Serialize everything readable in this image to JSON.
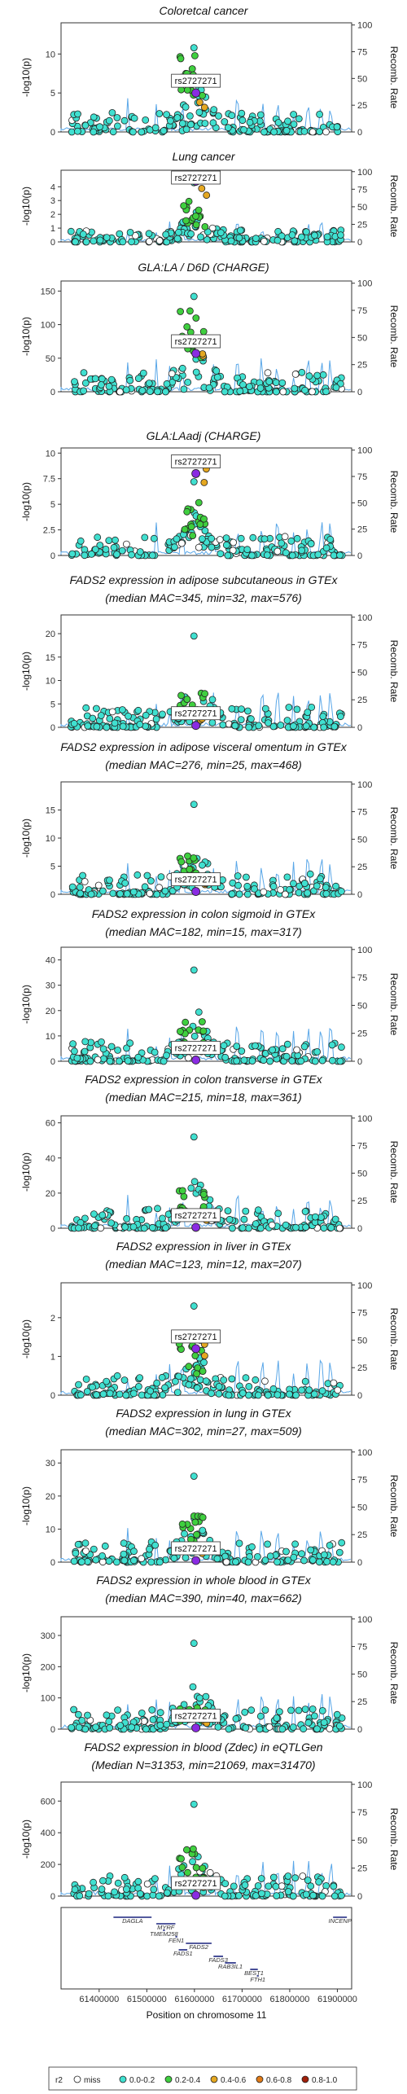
{
  "chart_data": {
    "type": "scatter",
    "snp_label": "rs2727271",
    "y_left_label": "-log10(p)",
    "y_right_label": "Recomb. Rate",
    "right_ticks": [
      0,
      25,
      50,
      75,
      100
    ],
    "x_label": "Position on chromosome 11",
    "x_ticks": [
      61400000,
      61500000,
      61600000,
      61700000,
      61800000,
      61900000
    ],
    "x_tick_labels": [
      "61400000",
      "61500000",
      "61600000",
      "61700000",
      "61800000",
      "61900000"
    ],
    "x_range": [
      61320000,
      61930000
    ],
    "lead_x": 61603000,
    "colors": {
      "miss": "#ffffff",
      "0.0-0.2": "#40e0d0",
      "0.2-0.4": "#3fcf3f",
      "0.4-0.6": "#e5a821",
      "0.6-0.8": "#e07b18",
      "0.8-1.0": "#a0200a",
      "lead": "#8a2be2",
      "recomb": "#5aa7e8"
    },
    "legend": {
      "title": "r2",
      "items": [
        {
          "key": "miss",
          "label": "miss"
        },
        {
          "key": "0.0-0.2",
          "label": "0.0-0.2"
        },
        {
          "key": "0.2-0.4",
          "label": "0.2-0.4"
        },
        {
          "key": "0.4-0.6",
          "label": "0.4-0.6"
        },
        {
          "key": "0.6-0.8",
          "label": "0.6-0.8"
        },
        {
          "key": "0.8-1.0",
          "label": "0.8-1.0"
        }
      ]
    },
    "panels": [
      {
        "title": [
          "Coloretcal cancer"
        ],
        "ylim": [
          0,
          14
        ],
        "yticks": [
          0,
          5,
          10
        ],
        "lead_y": 5.0,
        "max_y": 10.8,
        "green_max": 10.2
      },
      {
        "title": [
          "Lung cancer"
        ],
        "ylim": [
          0,
          5.2
        ],
        "yticks": [
          0,
          1,
          2,
          3,
          4
        ],
        "lead_y": 4.4,
        "max_y": 4.3,
        "green_max": 3.1
      },
      {
        "title": [
          "GLA:LA / D6D (CHARGE)"
        ],
        "ylim": [
          0,
          165
        ],
        "yticks": [
          0,
          50,
          100,
          150
        ],
        "lead_y": 57,
        "max_y": 142,
        "green_max": 128
      },
      {
        "title": [
          "GLA:LAadj (CHARGE)"
        ],
        "ylim": [
          0,
          10.5
        ],
        "yticks": [
          0.0,
          2.5,
          5.0,
          7.5,
          10.0
        ],
        "lead_y": 8.0,
        "max_y": 7.2,
        "green_max": 5.4
      },
      {
        "title": [
          "FADS2 expression in adipose subcutaneous in GTEx",
          "(median MAC=345, min=32, max=576)"
        ],
        "ylim": [
          0,
          24
        ],
        "yticks": [
          0,
          5,
          10,
          15,
          20
        ],
        "lead_y": 0.4,
        "max_y": 19.5,
        "green_max": 7.5
      },
      {
        "title": [
          "FADS2 expression in adipose visceral omentum in GTEx",
          "(median MAC=276, min=25, max=468)"
        ],
        "ylim": [
          0,
          20
        ],
        "yticks": [
          0,
          5,
          10,
          15
        ],
        "lead_y": 0.5,
        "max_y": 16.0,
        "green_max": 7.0
      },
      {
        "title": [
          "FADS2 expression in colon sigmoid in GTEx",
          "(median MAC=182, min=15, max=317)"
        ],
        "ylim": [
          0,
          45
        ],
        "yticks": [
          0,
          10,
          20,
          30,
          40
        ],
        "lead_y": 0.5,
        "max_y": 36.0,
        "green_max": 16.0
      },
      {
        "title": [
          "FADS2 expression in colon transverse in GTEx",
          "(median MAC=215, min=18, max=361)"
        ],
        "ylim": [
          0,
          64
        ],
        "yticks": [
          0,
          20,
          40,
          60
        ],
        "lead_y": 0.5,
        "max_y": 52.0,
        "green_max": 24.0
      },
      {
        "title": [
          "FADS2 expression in liver in GTEx",
          "(median MAC=123, min=12, max=207)"
        ],
        "ylim": [
          0,
          2.9
        ],
        "yticks": [
          0,
          1,
          2
        ],
        "lead_y": 1.2,
        "max_y": 2.3,
        "green_max": 1.5
      },
      {
        "title": [
          "FADS2 expression in lung in GTEx",
          "(median MAC=302, min=27, max=509)"
        ],
        "ylim": [
          0,
          34
        ],
        "yticks": [
          0,
          10,
          20,
          30
        ],
        "lead_y": 0.5,
        "max_y": 26.0,
        "green_max": 14.0
      },
      {
        "title": [
          "FADS2 expression in whole blood in GTEx",
          "(median MAC=390, min=40, max=662)"
        ],
        "ylim": [
          0,
          360
        ],
        "yticks": [
          0,
          100,
          200,
          300
        ],
        "lead_y": 4,
        "max_y": 275,
        "green_max": 70
      },
      {
        "title": [
          "FADS2 expression in blood (Zdec) in eQTLGen",
          "(Median N=31353, min=21069, max=31470)"
        ],
        "ylim": [
          0,
          720
        ],
        "yticks": [
          0,
          200,
          400,
          600
        ],
        "lead_y": 5,
        "max_y": 580,
        "green_max": 300
      }
    ],
    "genes": [
      {
        "name": "DAGLA",
        "start": 61430000,
        "end": 61510000,
        "row": 0
      },
      {
        "name": "MYRF",
        "start": 61520000,
        "end": 61560000,
        "row": 1
      },
      {
        "name": "TMEM258",
        "start": 61534000,
        "end": 61538000,
        "row": 2
      },
      {
        "name": "FEN1",
        "start": 61560000,
        "end": 61564000,
        "row": 3
      },
      {
        "name": "FADS2",
        "start": 61582000,
        "end": 61636000,
        "row": 4
      },
      {
        "name": "FADS1",
        "start": 61567000,
        "end": 61585000,
        "row": 5
      },
      {
        "name": "FADS3",
        "start": 61640000,
        "end": 61660000,
        "row": 6
      },
      {
        "name": "RAB3IL1",
        "start": 61664000,
        "end": 61687000,
        "row": 7
      },
      {
        "name": "BEST1",
        "start": 61717000,
        "end": 61733000,
        "row": 8
      },
      {
        "name": "FTH1",
        "start": 61731000,
        "end": 61735000,
        "row": 9
      },
      {
        "name": "INCENP",
        "start": 61891000,
        "end": 61920000,
        "row": 0
      }
    ]
  }
}
